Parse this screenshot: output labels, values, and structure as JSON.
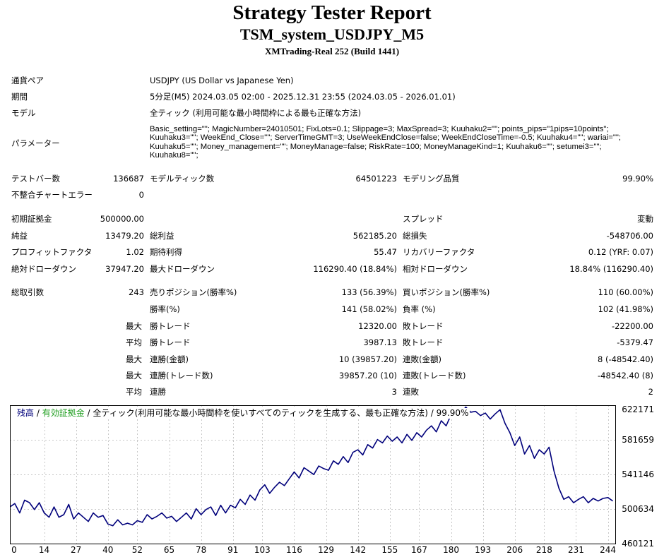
{
  "header": {
    "title": "Strategy Tester Report",
    "subtitle": "TSM_system_USDJPY_M5",
    "server": "XMTrading-Real 252 (Build 1441)"
  },
  "info": {
    "pair_label": "通貨ペア",
    "pair_value": "USDJPY (US Dollar vs Japanese Yen)",
    "period_label": "期間",
    "period_value": "5分足(M5) 2024.03.05 02:00 - 2025.12.31 23:55 (2024.03.05 - 2026.01.01)",
    "model_label": "モデル",
    "model_value": "全ティック (利用可能な最小時間枠による最も正確な方法)",
    "params_label": "パラメーター",
    "params_value": "Basic_setting=\"\"; MagicNumber=24010501; FixLots=0.1; Slippage=3; MaxSpread=3; Kuuhaku2=\"\"; points_pips=\"1pips=10points\"; Kuuhaku3=\"\"; WeekEnd_Close=\"\"; ServerTimeGMT=3; UseWeekEndClose=false; WeekEndCloseTime=-0.5; Kuuhaku4=\"\"; wariai=\"\"; Kuuhaku5=\"\"; Money_management=\"\"; MoneyManage=false; RiskRate=100; MoneyManageKind=1; Kuuhaku6=\"\"; setumei3=\"\"; Kuuhaku8=\"\";"
  },
  "stats": {
    "bars_label": "テストバー数",
    "bars_value": "136687",
    "ticks_label": "モデルティック数",
    "ticks_value": "64501223",
    "quality_label": "モデリング品質",
    "quality_value": "99.90%",
    "errors_label": "不整合チャートエラー",
    "errors_value": "0",
    "deposit_label": "初期証拠金",
    "deposit_value": "500000.00",
    "spread_label": "スプレッド",
    "spread_value": "変動",
    "net_label": "純益",
    "net_value": "13479.20",
    "gross_profit_label": "総利益",
    "gross_profit_value": "562185.20",
    "gross_loss_label": "総損失",
    "gross_loss_value": "-548706.00",
    "pf_label": "プロフィットファクタ",
    "pf_value": "1.02",
    "payoff_label": "期待利得",
    "payoff_value": "55.47",
    "recovery_label": "リカバリーファクタ",
    "recovery_value": "0.12 (YRF: 0.07)",
    "abs_dd_label": "絶対ドローダウン",
    "abs_dd_value": "37947.20",
    "max_dd_label": "最大ドローダウン",
    "max_dd_value": "116290.40 (18.84%)",
    "rel_dd_label": "相対ドローダウン",
    "rel_dd_value": "18.84% (116290.40)",
    "trades_label": "総取引数",
    "trades_value": "243",
    "short_label": "売りポジション(勝率%)",
    "short_value": "133 (56.39%)",
    "long_label": "買いポジション(勝率%)",
    "long_value": "110 (60.00%)",
    "win_label": "勝率(%)",
    "win_value": "141 (58.02%)",
    "loss_label": "負率 (%)",
    "loss_value": "102 (41.98%)",
    "max_word": "最大",
    "avg_word": "平均",
    "largest_win_label": "勝トレード",
    "largest_win_value": "12320.00",
    "largest_loss_label": "敗トレード",
    "largest_loss_value": "-22200.00",
    "avg_win_label": "勝トレード",
    "avg_win_value": "3987.13",
    "avg_loss_label": "敗トレード",
    "avg_loss_value": "-5379.47",
    "cons_win_amt_label": "連勝(金額)",
    "cons_win_amt_value": "10 (39857.20)",
    "cons_loss_amt_label": "連敗(金額)",
    "cons_loss_amt_value": "8 (-48542.40)",
    "cons_win_cnt_label": "連勝(トレード数)",
    "cons_win_cnt_value": "39857.20 (10)",
    "cons_loss_cnt_label": "連敗(トレード数)",
    "cons_loss_cnt_value": "-48542.40 (8)",
    "avg_cons_win_label": "連勝",
    "avg_cons_win_value": "3",
    "avg_cons_loss_label": "連敗",
    "avg_cons_loss_value": "2"
  },
  "chart_legend": {
    "balance": "残高",
    "sep1": " / ",
    "equity": "有効証拠金",
    "sep2": " / ",
    "model_text": "全ティック(利用可能な最小時間枠を使いすべてのティックを生成する、最も正確な方法) / 99.90%"
  },
  "chart_data": {
    "type": "line",
    "series": [
      {
        "name": "残高",
        "color": "#00007b",
        "x": [
          0,
          2,
          4,
          6,
          8,
          10,
          12,
          14,
          16,
          18,
          20,
          22,
          24,
          26,
          28,
          30,
          32,
          34,
          36,
          38,
          40,
          42,
          44,
          46,
          48,
          50,
          52,
          54,
          56,
          58,
          60,
          62,
          64,
          66,
          68,
          70,
          72,
          74,
          76,
          78,
          80,
          82,
          84,
          86,
          88,
          90,
          92,
          94,
          96,
          98,
          100,
          102,
          104,
          106,
          108,
          110,
          112,
          114,
          116,
          118,
          120,
          122,
          124,
          126,
          128,
          130,
          132,
          134,
          136,
          138,
          140,
          142,
          144,
          146,
          148,
          150,
          152,
          154,
          156,
          158,
          160,
          162,
          164,
          166,
          168,
          170,
          172,
          174,
          176,
          178,
          180,
          182,
          184,
          186,
          188,
          190,
          192,
          194,
          196,
          198,
          200,
          202,
          204,
          206,
          208,
          210,
          212,
          214,
          216,
          218,
          220,
          222,
          224,
          226,
          228,
          230,
          232,
          234,
          236,
          238,
          240,
          242,
          244,
          246
        ],
        "y": [
          503000,
          507000,
          496000,
          511000,
          508000,
          500000,
          508000,
          496000,
          491000,
          503000,
          491000,
          494000,
          506000,
          489000,
          496000,
          491000,
          486000,
          496000,
          491000,
          493000,
          483000,
          481000,
          488000,
          482000,
          484000,
          482000,
          487000,
          485000,
          494000,
          489000,
          492000,
          496000,
          490000,
          492000,
          486000,
          491000,
          496000,
          489000,
          501000,
          494000,
          500000,
          503000,
          493000,
          505000,
          496000,
          505000,
          502000,
          512000,
          506000,
          517000,
          511000,
          523000,
          529000,
          519000,
          526000,
          532000,
          528000,
          536000,
          544000,
          537000,
          549000,
          545000,
          541000,
          551000,
          548000,
          546000,
          557000,
          553000,
          562000,
          555000,
          567000,
          570000,
          564000,
          576000,
          572000,
          582000,
          578000,
          586000,
          580000,
          585000,
          578000,
          588000,
          581000,
          590000,
          585000,
          593000,
          598000,
          591000,
          604000,
          598000,
          611000,
          608000,
          613000,
          620000,
          614000,
          615000,
          610000,
          613000,
          606000,
          612000,
          617000,
          601000,
          590000,
          575000,
          585000,
          565000,
          575000,
          560000,
          570000,
          565000,
          573000,
          545000,
          525000,
          512000,
          515000,
          508000,
          512000,
          515000,
          508000,
          513000,
          510000,
          513000,
          514000,
          510000
        ]
      }
    ],
    "y_ticks": [
      "622171",
      "581659",
      "541146",
      "500634",
      "460121"
    ],
    "x_ticks": [
      "0",
      "14",
      "27",
      "40",
      "52",
      "65",
      "78",
      "91",
      "103",
      "116",
      "129",
      "142",
      "155",
      "167",
      "180",
      "193",
      "206",
      "218",
      "231",
      "244"
    ],
    "ylim": [
      460121,
      622171
    ],
    "xlim": [
      0,
      247
    ],
    "grid": true
  }
}
